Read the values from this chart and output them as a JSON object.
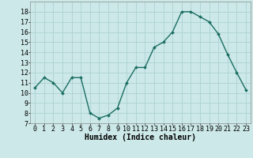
{
  "x": [
    0,
    1,
    2,
    3,
    4,
    5,
    6,
    7,
    8,
    9,
    10,
    11,
    12,
    13,
    14,
    15,
    16,
    17,
    18,
    19,
    20,
    21,
    22,
    23
  ],
  "y": [
    10.5,
    11.5,
    11.0,
    10.0,
    11.5,
    11.5,
    8.0,
    7.5,
    7.8,
    8.5,
    11.0,
    12.5,
    12.5,
    14.5,
    15.0,
    16.0,
    18.0,
    18.0,
    17.5,
    17.0,
    15.8,
    13.8,
    12.0,
    10.3
  ],
  "line_color": "#1a6e62",
  "marker": "D",
  "marker_size": 2.0,
  "bg_color": "#cce8e8",
  "grid_color": "#a8cece",
  "xlabel": "Humidex (Indice chaleur)",
  "ylim": [
    7,
    19
  ],
  "xlim": [
    -0.5,
    23.5
  ],
  "yticks": [
    7,
    8,
    9,
    10,
    11,
    12,
    13,
    14,
    15,
    16,
    17,
    18
  ],
  "xtick_labels": [
    "0",
    "1",
    "2",
    "3",
    "4",
    "5",
    "6",
    "7",
    "8",
    "9",
    "10",
    "11",
    "12",
    "13",
    "14",
    "15",
    "16",
    "17",
    "18",
    "19",
    "20",
    "21",
    "22",
    "23"
  ],
  "xlabel_fontsize": 7,
  "tick_fontsize": 6,
  "line_width": 1.0
}
